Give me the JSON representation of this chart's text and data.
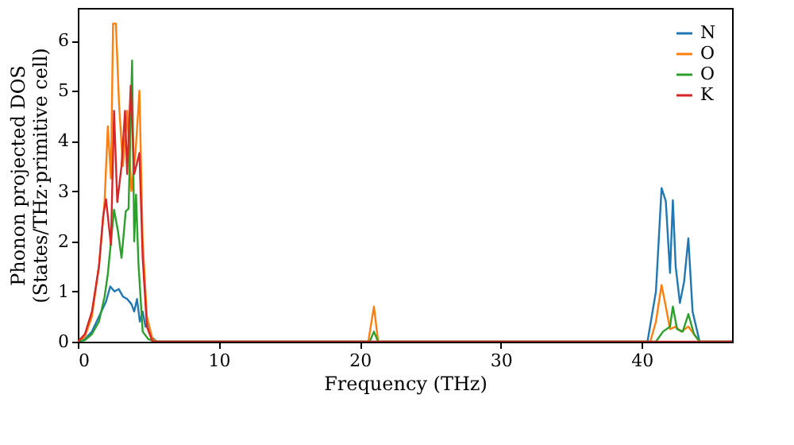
{
  "chart_data": {
    "type": "line",
    "xlabel": "Frequency (THz)",
    "ylabel": "Phonon projected DOS\n(States/THz·primitive cell)",
    "xlim": [
      0,
      46.4
    ],
    "ylim": [
      0,
      6.65
    ],
    "xticks": [
      0,
      10,
      20,
      30,
      40
    ],
    "yticks": [
      0,
      1,
      2,
      3,
      4,
      5,
      6
    ],
    "grid": false,
    "legend": "top right",
    "series": [
      {
        "name": "N",
        "color": "#1f77b4",
        "x": [
          0,
          0.5,
          1,
          1.5,
          2,
          2.3,
          2.6,
          2.9,
          3.2,
          3.5,
          3.8,
          4.0,
          4.2,
          4.4,
          4.6,
          4.8,
          5.0,
          5.2,
          5.6,
          40.4,
          41.0,
          41.4,
          41.7,
          42.0,
          42.2,
          42.4,
          42.7,
          43.0,
          43.3,
          43.6,
          44.1,
          46.4
        ],
        "values": [
          0,
          0.05,
          0.2,
          0.5,
          0.8,
          1.1,
          1.0,
          1.05,
          0.9,
          0.85,
          0.75,
          0.6,
          0.85,
          0.4,
          0.6,
          0.3,
          0.35,
          0.1,
          0,
          0,
          1.0,
          3.06,
          2.8,
          1.37,
          2.82,
          1.5,
          0.77,
          1.2,
          2.06,
          0.6,
          0,
          0
        ]
      },
      {
        "name": "O",
        "color": "#ff7f0e",
        "x": [
          0,
          0.5,
          1,
          1.5,
          1.9,
          2.13,
          2.35,
          2.5,
          2.7,
          2.93,
          3.2,
          3.5,
          3.8,
          4.1,
          4.37,
          4.6,
          4.9,
          5.3,
          5.6,
          20.6,
          21.0,
          21.3,
          40.6,
          41.0,
          41.4,
          41.7,
          42.0,
          42.4,
          42.8,
          43.3,
          43.7,
          44.1,
          46.4
        ],
        "values": [
          0,
          0.1,
          0.5,
          1.5,
          2.8,
          4.29,
          3.25,
          6.34,
          6.34,
          4.7,
          3.5,
          4.6,
          3.0,
          3.8,
          5.0,
          2.0,
          0.5,
          0.05,
          0,
          0,
          0.7,
          0,
          0,
          0.4,
          1.13,
          0.7,
          0.25,
          0.3,
          0.2,
          0.3,
          0.15,
          0,
          0
        ]
      },
      {
        "name": "O",
        "color": "#2ca02c",
        "x": [
          0,
          0.5,
          1,
          1.5,
          1.9,
          2.13,
          2.57,
          2.85,
          3.1,
          3.4,
          3.6,
          3.85,
          4.0,
          4.13,
          4.3,
          4.6,
          5.0,
          5.5,
          20.7,
          21.0,
          21.3,
          41.0,
          41.5,
          42.0,
          42.2,
          42.5,
          42.9,
          43.3,
          43.7,
          44.1,
          46.4
        ],
        "values": [
          0,
          0.03,
          0.15,
          0.4,
          0.9,
          1.35,
          2.63,
          2.2,
          1.67,
          2.6,
          2.65,
          5.6,
          2.0,
          2.93,
          1.56,
          0.2,
          0.05,
          0,
          0,
          0.2,
          0,
          0,
          0.2,
          0.3,
          0.7,
          0.25,
          0.2,
          0.55,
          0.15,
          0,
          0
        ]
      },
      {
        "name": "K",
        "color": "#d62728",
        "x": [
          0,
          0.5,
          1,
          1.5,
          1.8,
          2.0,
          2.35,
          2.57,
          2.8,
          3.1,
          3.35,
          3.5,
          3.75,
          4.0,
          4.37,
          4.6,
          4.9,
          5.3,
          46.4
        ],
        "values": [
          0,
          0.15,
          0.6,
          1.5,
          2.5,
          2.84,
          1.93,
          4.6,
          2.78,
          3.5,
          4.6,
          3.34,
          5.1,
          3.34,
          3.76,
          1.67,
          0.3,
          0,
          0
        ]
      }
    ]
  }
}
